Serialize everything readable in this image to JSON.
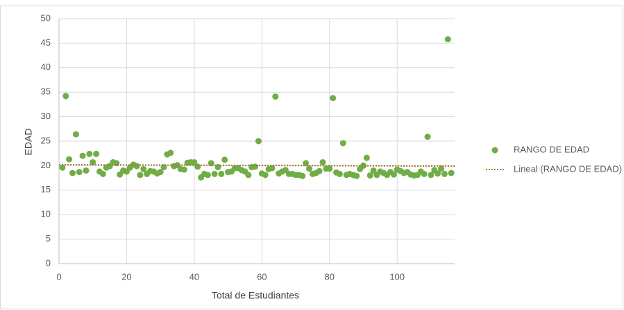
{
  "chart_data": {
    "type": "scatter",
    "xlabel": "Total de Estudiantes",
    "ylabel": "EDAD",
    "xlim": [
      0,
      117
    ],
    "xticks": [
      0,
      20,
      40,
      60,
      80,
      100
    ],
    "ylim": [
      0,
      50
    ],
    "yticks": [
      0,
      5,
      10,
      15,
      20,
      25,
      30,
      35,
      40,
      45,
      50
    ],
    "grid": true,
    "legend": "right",
    "series": [
      {
        "name": "RANGO DE EDAD",
        "color": "#70ad47",
        "x": [
          1,
          2,
          3,
          4,
          5,
          6,
          7,
          8,
          9,
          10,
          11,
          12,
          13,
          14,
          15,
          16,
          17,
          18,
          19,
          20,
          21,
          22,
          23,
          24,
          25,
          26,
          27,
          28,
          29,
          30,
          31,
          32,
          33,
          34,
          35,
          36,
          37,
          38,
          39,
          40,
          41,
          42,
          43,
          44,
          45,
          46,
          47,
          48,
          49,
          50,
          51,
          52,
          53,
          54,
          55,
          56,
          57,
          58,
          59,
          60,
          61,
          62,
          63,
          64,
          65,
          66,
          67,
          68,
          69,
          70,
          71,
          72,
          73,
          74,
          75,
          76,
          77,
          78,
          79,
          80,
          81,
          82,
          83,
          84,
          85,
          86,
          87,
          88,
          89,
          90,
          91,
          92,
          93,
          94,
          95,
          96,
          97,
          98,
          99,
          100,
          101,
          102,
          103,
          104,
          105,
          106,
          107,
          108,
          109,
          110,
          111,
          112,
          113,
          114,
          115,
          116
        ],
        "values": [
          19.6,
          34.2,
          21.3,
          18.5,
          26.4,
          18.7,
          22,
          19,
          22.4,
          20.7,
          22.4,
          18.8,
          18.3,
          19.6,
          19.9,
          20.7,
          20.5,
          18.2,
          19,
          18.8,
          19.6,
          20.2,
          19.9,
          18.1,
          19.3,
          18.3,
          18.9,
          18.8,
          18.4,
          18.7,
          19.7,
          22.3,
          22.6,
          19.9,
          20.1,
          19.3,
          19.2,
          20.6,
          20.7,
          20.7,
          19.8,
          17.6,
          18.3,
          18.1,
          20.5,
          18.3,
          19.7,
          18.3,
          21.2,
          18.7,
          18.8,
          19.5,
          19.5,
          19.1,
          18.8,
          18.1,
          19.7,
          19.8,
          25,
          18.4,
          18.1,
          19.3,
          19.5,
          34.1,
          18.4,
          18.8,
          19.1,
          18.3,
          18.3,
          18.1,
          18.1,
          17.9,
          20.5,
          19.4,
          18.3,
          18.5,
          18.9,
          20.7,
          19.4,
          19.4,
          33.8,
          18.6,
          18.3,
          24.6,
          18.1,
          18.3,
          18.1,
          17.9,
          19.3,
          20,
          21.6,
          18,
          19,
          18.1,
          18.8,
          18.5,
          18.1,
          18.7,
          18.2,
          19.2,
          18.9,
          18.5,
          18.7,
          18.2,
          18,
          18.1,
          18.8,
          18.3,
          25.9,
          18.1,
          19.1,
          18.4,
          19.4,
          18.3,
          45.8,
          18.5
        ]
      },
      {
        "name": "Lineal (RANGO DE EDAD)",
        "color": "#a5762a",
        "line": "dotted",
        "x": [
          0,
          117
        ],
        "values": [
          20.2,
          19.9
        ]
      }
    ]
  }
}
